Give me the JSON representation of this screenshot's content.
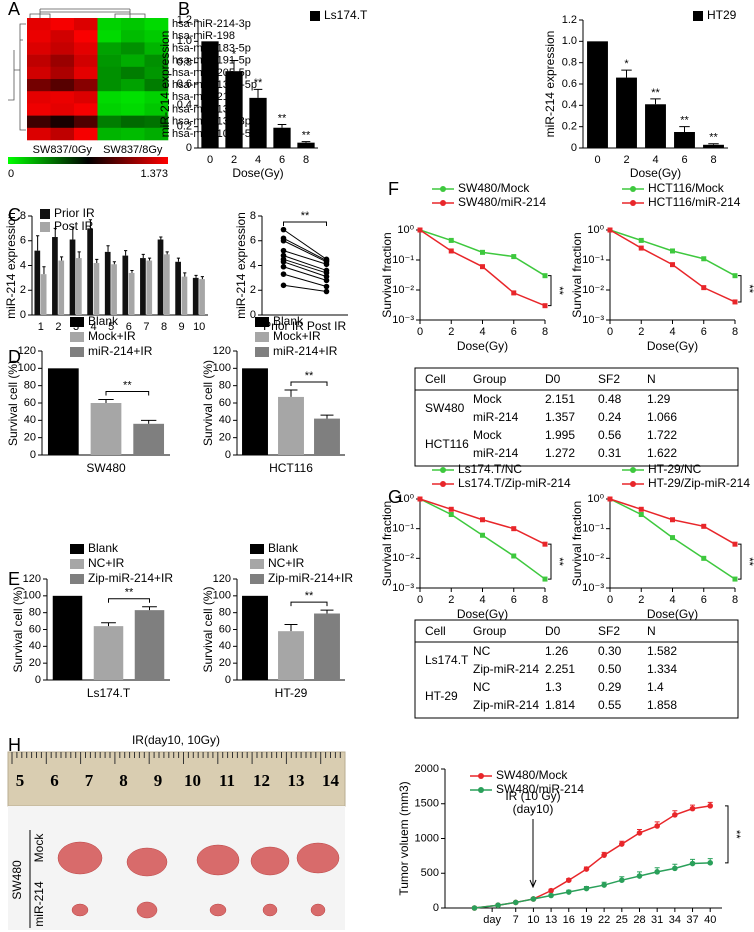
{
  "panels": [
    "A",
    "B",
    "C",
    "D",
    "E",
    "F",
    "G",
    "H"
  ],
  "heatmap": {
    "rows": [
      "hsa-miR-214-3p",
      "hsa-miR-198",
      "hsa-miR-183-5p",
      "hsa-miR-191-5p",
      "hsa-miR-205-5p",
      "hsa-miR-135b-5p",
      "hsa-miR-210",
      "hsa-miR-134",
      "hsa-miR-132-3p",
      "hsa-miR-106a-5p"
    ],
    "columns": [
      "SW837/0Gy",
      "SW837/8Gy"
    ],
    "colorbar": [
      0,
      1.373
    ],
    "values": [
      [
        1.3,
        1.35,
        1.28,
        0.12,
        0.15,
        0.1
      ],
      [
        1.32,
        1.25,
        1.36,
        0.1,
        0.18,
        0.14
      ],
      [
        1.28,
        1.22,
        1.3,
        0.25,
        0.3,
        0.2
      ],
      [
        1.2,
        1.1,
        1.25,
        0.28,
        0.22,
        0.3
      ],
      [
        1.25,
        1.15,
        1.3,
        0.3,
        0.35,
        0.28
      ],
      [
        1.0,
        0.92,
        1.05,
        0.3,
        0.25,
        0.35
      ],
      [
        1.3,
        1.32,
        1.28,
        0.1,
        0.08,
        0.12
      ],
      [
        1.33,
        1.3,
        1.35,
        0.12,
        0.1,
        0.15
      ],
      [
        0.85,
        0.75,
        0.9,
        0.35,
        0.4,
        0.38
      ],
      [
        1.28,
        1.2,
        1.35,
        0.2,
        0.18,
        0.22
      ]
    ]
  },
  "chart_data": [
    {
      "type": "bar",
      "legend": "upper right",
      "categories": [
        "0",
        "2",
        "4",
        "6",
        "8"
      ],
      "series": [
        {
          "name": "Ls174.T",
          "color": "#000000",
          "values": [
            1,
            0.72,
            0.47,
            0.19,
            0.05
          ],
          "errors": [
            null,
            0.1,
            0.08,
            0.03,
            0.01
          ],
          "sig": [
            null,
            "*",
            "**",
            "**",
            "**"
          ]
        }
      ],
      "ylim": [
        0,
        1.2
      ],
      "yticks": [
        0,
        0.2,
        0.4,
        0.6,
        0.8,
        {
          "value": 1,
          "label": "1.0"
        },
        1.2
      ],
      "ylabel": "miR-214 expression",
      "xlabel": "Dose(Gy)"
    },
    {
      "type": "bar",
      "legend": "upper right",
      "categories": [
        "0",
        "2",
        "4",
        "6",
        "8"
      ],
      "series": [
        {
          "name": "HT29",
          "color": "#000000",
          "values": [
            1,
            0.66,
            0.41,
            0.15,
            0.03
          ],
          "errors": [
            null,
            0.07,
            0.05,
            0.05,
            0.01
          ],
          "sig": [
            null,
            "*",
            "**",
            "**",
            "**"
          ]
        }
      ],
      "ylim": [
        0,
        1.2
      ],
      "yticks": [
        0,
        0.2,
        0.4,
        0.6,
        0.8,
        {
          "value": 1,
          "label": "1.0"
        },
        1.2
      ],
      "ylabel": "miR-214 expression",
      "xlabel": "Dose(Gy)"
    },
    {
      "type": "bar",
      "legend": "upper left",
      "categories": [
        "1",
        "2",
        "3",
        "4",
        "5",
        "6",
        "7",
        "8",
        "9",
        "10"
      ],
      "series": [
        {
          "name": "Prior IR",
          "color": "#111111",
          "values": [
            5.2,
            6.3,
            6.1,
            7.0,
            5.1,
            4.8,
            4.6,
            6.1,
            4.3,
            3.0
          ],
          "errors": [
            1.2,
            0.7,
            1.0,
            0.7,
            0.5,
            0.4,
            0.3,
            0.2,
            0.3,
            0.2
          ]
        },
        {
          "name": "Post IR",
          "color": "#a6a6a6",
          "values": [
            3.3,
            4.4,
            4.6,
            4.2,
            4.1,
            3.4,
            4.4,
            4.9,
            3.1,
            2.9
          ],
          "errors": [
            0.6,
            0.3,
            0.5,
            0.3,
            0.2,
            0.2,
            0.2,
            0.2,
            0.3,
            0.2
          ]
        }
      ],
      "ylim": [
        0,
        8
      ],
      "yticks": [
        0,
        2,
        4,
        6,
        8
      ],
      "ylabel": "miR-214 expression"
    },
    {
      "type": "paired",
      "categories": [
        "Prior IR",
        "Post IR"
      ],
      "pairs": [
        [
          6.9,
          4.5
        ],
        [
          6.2,
          4.4
        ],
        [
          6.0,
          4.3
        ],
        [
          5.2,
          4.1
        ],
        [
          4.8,
          3.6
        ],
        [
          4.5,
          3.4
        ],
        [
          4.3,
          3.1
        ],
        [
          3.9,
          2.8
        ],
        [
          3.3,
          2.3
        ],
        [
          2.4,
          1.9
        ]
      ],
      "sig": "**",
      "ylim": [
        0,
        8
      ],
      "yticks": [
        0,
        2,
        4,
        6,
        8
      ],
      "ylabel": "miR-214 expression"
    },
    {
      "type": "bar",
      "legend": "top",
      "categories": [
        "Blank",
        "Mock+IR",
        "miR-214+IR"
      ],
      "colors": [
        "#000000",
        "#a6a6a6",
        "#7f7f7f"
      ],
      "series": [
        {
          "values": [
            100,
            60,
            36
          ],
          "errors": [
            null,
            4,
            4
          ]
        }
      ],
      "sig": "**",
      "xlabel": "SW480",
      "ylabel": "Survival cell (%)",
      "ylim": [
        0,
        120
      ],
      "yticks": [
        0,
        20,
        40,
        60,
        80,
        100,
        120
      ]
    },
    {
      "type": "bar",
      "legend": "top",
      "categories": [
        "Blank",
        "Mock+IR",
        "miR-214+IR"
      ],
      "colors": [
        "#000000",
        "#a6a6a6",
        "#7f7f7f"
      ],
      "series": [
        {
          "values": [
            100,
            67,
            42
          ],
          "errors": [
            null,
            8,
            4
          ]
        }
      ],
      "sig": "**",
      "xlabel": "HCT116",
      "ylabel": "Survival cell (%)",
      "ylim": [
        0,
        120
      ],
      "yticks": [
        0,
        20,
        40,
        60,
        80,
        100,
        120
      ]
    },
    {
      "type": "bar",
      "legend": "top",
      "categories": [
        "Blank",
        "NC+IR",
        "Zip-miR-214+IR"
      ],
      "colors": [
        "#000000",
        "#a6a6a6",
        "#7f7f7f"
      ],
      "series": [
        {
          "values": [
            100,
            64,
            83
          ],
          "errors": [
            null,
            4,
            4
          ]
        }
      ],
      "sig": "**",
      "xlabel": "Ls174.T",
      "ylabel": "Survival cell (%)",
      "ylim": [
        0,
        120
      ],
      "yticks": [
        0,
        20,
        40,
        60,
        80,
        100,
        120
      ]
    },
    {
      "type": "bar",
      "legend": "top",
      "categories": [
        "Blank",
        "NC+IR",
        "Zip-miR-214+IR"
      ],
      "colors": [
        "#000000",
        "#a6a6a6",
        "#7f7f7f"
      ],
      "series": [
        {
          "values": [
            100,
            58,
            79
          ],
          "errors": [
            null,
            8,
            4
          ]
        }
      ],
      "sig": "**",
      "xlabel": "HT-29",
      "ylabel": "Survival cell (%)",
      "ylim": [
        0,
        120
      ],
      "yticks": [
        0,
        20,
        40,
        60,
        80,
        100,
        120
      ]
    },
    {
      "type": "line",
      "log_y": true,
      "legend": "top",
      "x": [
        0,
        2,
        4,
        6,
        8
      ],
      "series": [
        {
          "name": "SW480/Mock",
          "color": "#3ec83e",
          "values": [
            1,
            0.45,
            0.18,
            0.13,
            0.03
          ]
        },
        {
          "name": "SW480/miR-214",
          "color": "#e8262a",
          "values": [
            1,
            0.2,
            0.06,
            0.008,
            0.003
          ]
        }
      ],
      "xlim": [
        0,
        8
      ],
      "xticks": [
        0,
        2,
        4,
        6,
        8
      ],
      "ylim": [
        0.001,
        1
      ],
      "yticks": [
        {
          "value": 0.001,
          "label": "10⁻³"
        },
        {
          "value": 0.01,
          "label": "10⁻²"
        },
        {
          "value": 0.1,
          "label": "10⁻¹"
        },
        {
          "value": 1,
          "label": "10⁰"
        }
      ],
      "xlabel": "Dose(Gy)",
      "ylabel": "Survival fraction",
      "sig": "**"
    },
    {
      "type": "line",
      "log_y": true,
      "legend": "top",
      "x": [
        0,
        2,
        4,
        6,
        8
      ],
      "series": [
        {
          "name": "HCT116/Mock",
          "color": "#3ec83e",
          "values": [
            1,
            0.45,
            0.2,
            0.11,
            0.03
          ]
        },
        {
          "name": "HCT116/miR-214",
          "color": "#e8262a",
          "values": [
            1,
            0.25,
            0.07,
            0.012,
            0.004
          ]
        }
      ],
      "xlim": [
        0,
        8
      ],
      "xticks": [
        0,
        2,
        4,
        6,
        8
      ],
      "ylim": [
        0.001,
        1
      ],
      "yticks": [
        {
          "value": 0.001,
          "label": "10⁻³"
        },
        {
          "value": 0.01,
          "label": "10⁻²"
        },
        {
          "value": 0.1,
          "label": "10⁻¹"
        },
        {
          "value": 1,
          "label": "10⁰"
        }
      ],
      "xlabel": "Dose(Gy)",
      "ylabel": "Survival fraction",
      "sig": "**"
    },
    {
      "type": "line",
      "log_y": true,
      "legend": "top",
      "x": [
        0,
        2,
        4,
        6,
        8
      ],
      "series": [
        {
          "name": "Ls174.T/NC",
          "color": "#3ec83e",
          "values": [
            1,
            0.3,
            0.06,
            0.012,
            0.002
          ]
        },
        {
          "name": "Ls174.T/Zip-miR-214",
          "color": "#e8262a",
          "values": [
            1,
            0.45,
            0.2,
            0.1,
            0.03
          ]
        }
      ],
      "xlim": [
        0,
        8
      ],
      "xticks": [
        0,
        2,
        4,
        6,
        8
      ],
      "ylim": [
        0.001,
        1
      ],
      "yticks": [
        {
          "value": 0.001,
          "label": "10⁻³"
        },
        {
          "value": 0.01,
          "label": "10⁻²"
        },
        {
          "value": 0.1,
          "label": "10⁻¹"
        },
        {
          "value": 1,
          "label": "10⁰"
        }
      ],
      "xlabel": "Dose(Gy)",
      "ylabel": "Survival fraction",
      "sig": "**"
    },
    {
      "type": "line",
      "log_y": true,
      "legend": "top",
      "x": [
        0,
        2,
        4,
        6,
        8
      ],
      "series": [
        {
          "name": "HT-29/NC",
          "color": "#3ec83e",
          "values": [
            1,
            0.3,
            0.05,
            0.01,
            0.002
          ]
        },
        {
          "name": "HT-29/Zip-miR-214",
          "color": "#e8262a",
          "values": [
            1,
            0.45,
            0.2,
            0.12,
            0.03
          ]
        }
      ],
      "xlim": [
        0,
        8
      ],
      "xticks": [
        0,
        2,
        4,
        6,
        8
      ],
      "ylim": [
        0.001,
        1
      ],
      "yticks": [
        {
          "value": 0.001,
          "label": "10⁻³"
        },
        {
          "value": 0.01,
          "label": "10⁻²"
        },
        {
          "value": 0.1,
          "label": "10⁻¹"
        },
        {
          "value": 1,
          "label": "10⁰"
        }
      ],
      "xlabel": "Dose(Gy)",
      "ylabel": "Survival fraction",
      "sig": "**"
    },
    {
      "type": "line",
      "legend": "upper left",
      "x": [
        0,
        4,
        7,
        10,
        13,
        16,
        19,
        22,
        25,
        28,
        31,
        34,
        37,
        40
      ],
      "series": [
        {
          "name": "SW480/Mock",
          "color": "#e8262a",
          "values": [
            0,
            40,
            80,
            130,
            250,
            400,
            560,
            760,
            920,
            1080,
            1180,
            1340,
            1430,
            1470
          ],
          "errors": [
            null,
            null,
            10,
            15,
            20,
            25,
            30,
            40,
            40,
            50,
            60,
            60,
            50,
            50
          ]
        },
        {
          "name": "SW480/miR-214",
          "color": "#2aa05a",
          "values": [
            0,
            40,
            80,
            130,
            180,
            230,
            280,
            330,
            400,
            460,
            520,
            570,
            640,
            650
          ],
          "errors": [
            null,
            null,
            10,
            15,
            20,
            25,
            30,
            40,
            50,
            60,
            60,
            60,
            60,
            60
          ]
        }
      ],
      "xlim": [
        -5,
        42
      ],
      "xticks": [
        {
          "value": 3,
          "label": "day"
        },
        7,
        10,
        13,
        16,
        19,
        22,
        25,
        28,
        31,
        34,
        37,
        40
      ],
      "ylim": [
        0,
        2000
      ],
      "yticks": [
        0,
        500,
        1000,
        1500,
        2000
      ],
      "ylabel": "Tumor voluem (mm3)",
      "sig": "**",
      "annotation": [
        "IR (10 Gy)",
        "(day10)"
      ]
    }
  ],
  "tables": [
    {
      "columns": [
        "Cell",
        "Group",
        "D0",
        "SF2",
        "N"
      ],
      "groups": [
        {
          "cell": "SW480",
          "rows": [
            [
              "Mock",
              "2.151",
              "0.48",
              "1.29"
            ],
            [
              "miR-214",
              "1.357",
              "0.24",
              "1.066"
            ]
          ]
        },
        {
          "cell": "HCT116",
          "rows": [
            [
              "Mock",
              "1.995",
              "0.56",
              "1.722"
            ],
            [
              "miR-214",
              "1.272",
              "0.31",
              "1.622"
            ]
          ]
        }
      ]
    },
    {
      "columns": [
        "Cell",
        "Group",
        "D0",
        "SF2",
        "N"
      ],
      "groups": [
        {
          "cell": "Ls174.T",
          "rows": [
            [
              "NC",
              "1.26",
              "0.30",
              "1.582"
            ],
            [
              "Zip-miR-214",
              "2.251",
              "0.50",
              "1.334"
            ]
          ]
        },
        {
          "cell": "HT-29",
          "rows": [
            [
              "NC",
              "1.3",
              "0.29",
              "1.4"
            ],
            [
              "Zip-miR-214",
              "1.814",
              "0.55",
              "1.858"
            ]
          ]
        }
      ]
    }
  ],
  "photo": {
    "title": "IR(day10, 10Gy)",
    "ruler": [
      5,
      6,
      7,
      8,
      9,
      10,
      11,
      12,
      13,
      14
    ],
    "cell": "SW480",
    "groups": [
      "Mock",
      "miR-214"
    ]
  }
}
